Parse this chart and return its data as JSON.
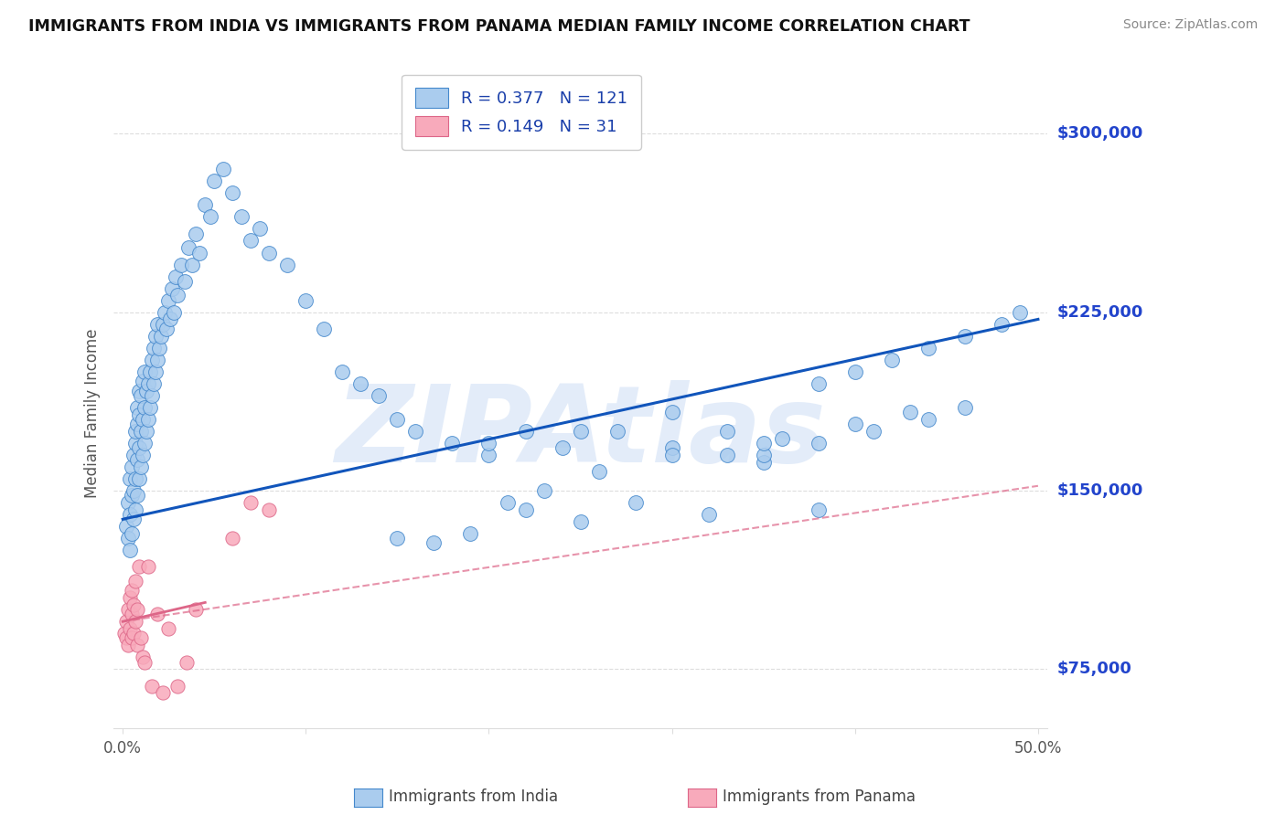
{
  "title": "IMMIGRANTS FROM INDIA VS IMMIGRANTS FROM PANAMA MEDIAN FAMILY INCOME CORRELATION CHART",
  "source": "Source: ZipAtlas.com",
  "ylabel": "Median Family Income",
  "xlim": [
    -0.005,
    0.505
  ],
  "ylim": [
    50000,
    315000
  ],
  "yticks": [
    75000,
    150000,
    225000,
    300000
  ],
  "ytick_labels": [
    "$75,000",
    "$150,000",
    "$225,000",
    "$300,000"
  ],
  "xtick_positions": [
    0.0,
    0.1,
    0.2,
    0.3,
    0.4,
    0.5
  ],
  "xtick_labels": [
    "0.0%",
    "",
    "",
    "",
    "",
    "50.0%"
  ],
  "india_dot_color": "#aaccee",
  "india_dot_edge": "#4488cc",
  "india_line_color": "#1155bb",
  "panama_dot_color": "#f8aabb",
  "panama_dot_edge": "#dd6688",
  "panama_line_color": "#dd6688",
  "india_R": "0.377",
  "india_N": "121",
  "panama_R": "0.149",
  "panama_N": "31",
  "watermark": "ZIPAtlas",
  "watermark_color": "#ccddf5",
  "india_scatter_x": [
    0.002,
    0.003,
    0.003,
    0.004,
    0.004,
    0.004,
    0.005,
    0.005,
    0.005,
    0.006,
    0.006,
    0.006,
    0.007,
    0.007,
    0.007,
    0.007,
    0.008,
    0.008,
    0.008,
    0.008,
    0.009,
    0.009,
    0.009,
    0.009,
    0.01,
    0.01,
    0.01,
    0.011,
    0.011,
    0.011,
    0.012,
    0.012,
    0.012,
    0.013,
    0.013,
    0.014,
    0.014,
    0.015,
    0.015,
    0.016,
    0.016,
    0.017,
    0.017,
    0.018,
    0.018,
    0.019,
    0.019,
    0.02,
    0.021,
    0.022,
    0.023,
    0.024,
    0.025,
    0.026,
    0.027,
    0.028,
    0.029,
    0.03,
    0.032,
    0.034,
    0.036,
    0.038,
    0.04,
    0.042,
    0.045,
    0.048,
    0.05,
    0.055,
    0.06,
    0.065,
    0.07,
    0.075,
    0.08,
    0.09,
    0.1,
    0.11,
    0.12,
    0.13,
    0.14,
    0.15,
    0.16,
    0.18,
    0.2,
    0.22,
    0.24,
    0.27,
    0.3,
    0.33,
    0.35,
    0.38,
    0.4,
    0.42,
    0.44,
    0.46,
    0.48,
    0.49,
    0.35,
    0.38,
    0.41,
    0.44,
    0.2,
    0.25,
    0.3,
    0.33,
    0.36,
    0.4,
    0.43,
    0.46,
    0.28,
    0.22,
    0.15,
    0.17,
    0.19,
    0.21,
    0.23,
    0.26,
    0.3,
    0.35,
    0.25,
    0.32,
    0.38
  ],
  "india_scatter_y": [
    135000,
    130000,
    145000,
    125000,
    140000,
    155000,
    132000,
    148000,
    160000,
    138000,
    150000,
    165000,
    142000,
    155000,
    170000,
    175000,
    148000,
    163000,
    178000,
    185000,
    155000,
    168000,
    182000,
    192000,
    160000,
    175000,
    190000,
    165000,
    180000,
    196000,
    170000,
    185000,
    200000,
    175000,
    192000,
    180000,
    195000,
    185000,
    200000,
    190000,
    205000,
    195000,
    210000,
    200000,
    215000,
    205000,
    220000,
    210000,
    215000,
    220000,
    225000,
    218000,
    230000,
    222000,
    235000,
    225000,
    240000,
    232000,
    245000,
    238000,
    252000,
    245000,
    258000,
    250000,
    270000,
    265000,
    280000,
    285000,
    275000,
    265000,
    255000,
    260000,
    250000,
    245000,
    230000,
    218000,
    200000,
    195000,
    190000,
    180000,
    175000,
    170000,
    165000,
    175000,
    168000,
    175000,
    183000,
    175000,
    162000,
    195000,
    200000,
    205000,
    210000,
    215000,
    220000,
    225000,
    165000,
    170000,
    175000,
    180000,
    170000,
    175000,
    168000,
    165000,
    172000,
    178000,
    183000,
    185000,
    145000,
    142000,
    130000,
    128000,
    132000,
    145000,
    150000,
    158000,
    165000,
    170000,
    137000,
    140000,
    142000
  ],
  "panama_scatter_x": [
    0.001,
    0.002,
    0.002,
    0.003,
    0.003,
    0.004,
    0.004,
    0.005,
    0.005,
    0.005,
    0.006,
    0.006,
    0.007,
    0.007,
    0.008,
    0.008,
    0.009,
    0.01,
    0.011,
    0.012,
    0.014,
    0.016,
    0.019,
    0.022,
    0.025,
    0.03,
    0.035,
    0.04,
    0.06,
    0.07,
    0.08
  ],
  "panama_scatter_y": [
    90000,
    88000,
    95000,
    85000,
    100000,
    92000,
    105000,
    88000,
    98000,
    108000,
    90000,
    102000,
    95000,
    112000,
    85000,
    100000,
    118000,
    88000,
    80000,
    78000,
    118000,
    68000,
    98000,
    65000,
    92000,
    68000,
    78000,
    100000,
    130000,
    145000,
    142000
  ],
  "india_trend_x": [
    0.0,
    0.5
  ],
  "india_trend_y": [
    138000,
    222000
  ],
  "panama_trend_x": [
    0.0,
    0.5
  ],
  "panama_trend_y": [
    95000,
    152000
  ],
  "panama_solid_trend_x": [
    0.0,
    0.045
  ],
  "panama_solid_trend_y": [
    95000,
    103000
  ],
  "bg_color": "#ffffff",
  "grid_color": "#dddddd",
  "title_fontsize": 12.5,
  "ylabel_color": "#555555",
  "right_label_color": "#2244cc"
}
